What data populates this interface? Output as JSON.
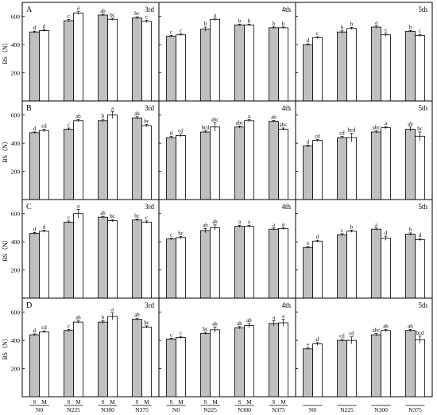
{
  "figure": {
    "ylabel": "BS（N）",
    "group_labels": [
      "N0",
      "N225",
      "N300",
      "N375"
    ],
    "bar_labels": [
      "S",
      "M"
    ],
    "yticks": [
      200,
      400,
      600
    ],
    "col_titles": [
      "3rd",
      "4th",
      "5th"
    ],
    "row_letters": [
      "A",
      "B",
      "C",
      "D"
    ],
    "colors": {
      "S": "#c0c0c0",
      "M": "#ffffff",
      "stroke": "#000000"
    }
  },
  "chart_data": [
    {
      "type": "bar",
      "row": "A",
      "title": "3rd",
      "categories": [
        "N0",
        "N225",
        "N300",
        "N375"
      ],
      "ylabel": "BS（N）",
      "ylim": [
        0,
        700
      ],
      "series": [
        {
          "name": "S",
          "values": [
            490,
            570,
            610,
            590
          ],
          "errors": [
            6,
            8,
            6,
            8
          ],
          "letters": [
            "d",
            "c",
            "ab",
            "bc"
          ]
        },
        {
          "name": "M",
          "values": [
            500,
            625,
            580,
            565
          ],
          "errors": [
            6,
            12,
            8,
            8
          ],
          "letters": [
            "d",
            "a",
            "bc",
            "c"
          ]
        }
      ]
    },
    {
      "type": "bar",
      "row": "A",
      "title": "4th",
      "categories": [
        "N0",
        "N225",
        "N300",
        "N375"
      ],
      "ylabel": "BS（N）",
      "ylim": [
        0,
        700
      ],
      "series": [
        {
          "name": "S",
          "values": [
            460,
            510,
            540,
            520
          ],
          "errors": [
            6,
            15,
            6,
            6
          ],
          "letters": [
            "c",
            "b",
            "b",
            "b"
          ]
        },
        {
          "name": "M",
          "values": [
            470,
            580,
            540,
            520
          ],
          "errors": [
            6,
            8,
            6,
            6
          ],
          "letters": [
            "c",
            "a",
            "b",
            "b"
          ]
        }
      ]
    },
    {
      "type": "bar",
      "row": "A",
      "title": "5th",
      "categories": [
        "N0",
        "N225",
        "N300",
        "N375"
      ],
      "ylabel": "BS（N）",
      "ylim": [
        0,
        700
      ],
      "series": [
        {
          "name": "S",
          "values": [
            400,
            490,
            525,
            495
          ],
          "errors": [
            6,
            8,
            8,
            6
          ],
          "letters": [
            "d",
            "b",
            "a",
            "b"
          ]
        },
        {
          "name": "M",
          "values": [
            450,
            515,
            470,
            465
          ],
          "errors": [
            6,
            8,
            12,
            8
          ],
          "letters": [
            "c",
            "b",
            "c",
            "c"
          ]
        }
      ]
    },
    {
      "type": "bar",
      "row": "B",
      "title": "3rd",
      "categories": [
        "N0",
        "N225",
        "N300",
        "N375"
      ],
      "ylabel": "BS（N）",
      "ylim": [
        0,
        700
      ],
      "series": [
        {
          "name": "S",
          "values": [
            475,
            500,
            560,
            580
          ],
          "errors": [
            6,
            8,
            10,
            8
          ],
          "letters": [
            "d",
            "c",
            "b",
            "ab"
          ]
        },
        {
          "name": "M",
          "values": [
            490,
            560,
            600,
            525
          ],
          "errors": [
            10,
            8,
            25,
            8
          ],
          "letters": [
            "cd",
            "ab",
            "a",
            "bc"
          ]
        }
      ]
    },
    {
      "type": "bar",
      "row": "B",
      "title": "4th",
      "categories": [
        "N0",
        "N225",
        "N300",
        "N375"
      ],
      "ylabel": "BS（N）",
      "ylim": [
        0,
        700
      ],
      "series": [
        {
          "name": "S",
          "values": [
            440,
            480,
            515,
            555
          ],
          "errors": [
            8,
            8,
            8,
            6
          ],
          "letters": [
            "d",
            "bcd",
            "abc",
            "ab"
          ]
        },
        {
          "name": "M",
          "values": [
            455,
            515,
            560,
            500
          ],
          "errors": [
            10,
            30,
            8,
            8
          ],
          "letters": [
            "cd",
            "abc",
            "a",
            "abc"
          ]
        }
      ]
    },
    {
      "type": "bar",
      "row": "B",
      "title": "5th",
      "categories": [
        "N0",
        "N225",
        "N300",
        "N375"
      ],
      "ylabel": "BS（N）",
      "ylim": [
        0,
        700
      ],
      "series": [
        {
          "name": "S",
          "values": [
            380,
            440,
            480,
            500
          ],
          "errors": [
            6,
            8,
            8,
            15
          ],
          "letters": [
            "d",
            "cd",
            "abc",
            "ab"
          ]
        },
        {
          "name": "M",
          "values": [
            420,
            440,
            510,
            450
          ],
          "errors": [
            6,
            30,
            8,
            30
          ],
          "letters": [
            "cd",
            "bcd",
            "a",
            "bc"
          ]
        }
      ]
    },
    {
      "type": "bar",
      "row": "C",
      "title": "3rd",
      "categories": [
        "N0",
        "N225",
        "N300",
        "N375"
      ],
      "ylabel": "BS（N）",
      "ylim": [
        0,
        700
      ],
      "series": [
        {
          "name": "S",
          "values": [
            460,
            540,
            575,
            555
          ],
          "errors": [
            6,
            8,
            6,
            8
          ],
          "letters": [
            "d",
            "c",
            "ab",
            "bc"
          ]
        },
        {
          "name": "M",
          "values": [
            475,
            600,
            550,
            540
          ],
          "errors": [
            8,
            30,
            8,
            8
          ],
          "letters": [
            "d",
            "a",
            "bc",
            "c"
          ]
        }
      ]
    },
    {
      "type": "bar",
      "row": "C",
      "title": "4th",
      "categories": [
        "N0",
        "N225",
        "N300",
        "N375"
      ],
      "ylabel": "BS（N）",
      "ylim": [
        0,
        700
      ],
      "series": [
        {
          "name": "S",
          "values": [
            420,
            480,
            510,
            490
          ],
          "errors": [
            6,
            15,
            8,
            8
          ],
          "letters": [
            "c",
            "ab",
            "a",
            "a"
          ]
        },
        {
          "name": "M",
          "values": [
            430,
            500,
            510,
            495
          ],
          "errors": [
            8,
            20,
            8,
            8
          ],
          "letters": [
            "bc",
            "ab",
            "a",
            "a"
          ]
        }
      ]
    },
    {
      "type": "bar",
      "row": "C",
      "title": "5th",
      "categories": [
        "N0",
        "N225",
        "N300",
        "N375"
      ],
      "ylabel": "BS（N）",
      "ylim": [
        0,
        700
      ],
      "series": [
        {
          "name": "S",
          "values": [
            360,
            450,
            490,
            455
          ],
          "errors": [
            6,
            8,
            8,
            8
          ],
          "letters": [
            "e",
            "c",
            "a",
            "b"
          ]
        },
        {
          "name": "M",
          "values": [
            405,
            475,
            425,
            415
          ],
          "errors": [
            6,
            8,
            15,
            8
          ],
          "letters": [
            "d",
            "b",
            "d",
            "d"
          ]
        }
      ]
    },
    {
      "type": "bar",
      "row": "D",
      "title": "3rd",
      "categories": [
        "N0",
        "N225",
        "N300",
        "N375"
      ],
      "ylabel": "BS（N）",
      "ylim": [
        0,
        700
      ],
      "series": [
        {
          "name": "S",
          "values": [
            440,
            470,
            530,
            550
          ],
          "errors": [
            6,
            8,
            10,
            8
          ],
          "letters": [
            "d",
            "c",
            "b",
            "ab"
          ]
        },
        {
          "name": "M",
          "values": [
            460,
            530,
            570,
            495
          ],
          "errors": [
            8,
            8,
            25,
            8
          ],
          "letters": [
            "cd",
            "ab",
            "a",
            "bc"
          ]
        }
      ]
    },
    {
      "type": "bar",
      "row": "D",
      "title": "4th",
      "categories": [
        "N0",
        "N225",
        "N300",
        "N375"
      ],
      "ylabel": "BS（N）",
      "ylim": [
        0,
        700
      ],
      "series": [
        {
          "name": "S",
          "values": [
            410,
            450,
            490,
            520
          ],
          "errors": [
            6,
            8,
            8,
            20
          ],
          "letters": [
            "c",
            "bc",
            "ab",
            "a"
          ]
        },
        {
          "name": "M",
          "values": [
            420,
            475,
            505,
            525
          ],
          "errors": [
            8,
            20,
            15,
            25
          ],
          "letters": [
            "c",
            "ab",
            "ab",
            "a"
          ]
        }
      ]
    },
    {
      "type": "bar",
      "row": "D",
      "title": "5th",
      "categories": [
        "N0",
        "N225",
        "N300",
        "N375"
      ],
      "ylabel": "BS（N）",
      "ylim": [
        0,
        700
      ],
      "series": [
        {
          "name": "S",
          "values": [
            340,
            400,
            440,
            470
          ],
          "errors": [
            6,
            8,
            8,
            8
          ],
          "letters": [
            "e",
            "cd",
            "abc",
            "ab"
          ]
        },
        {
          "name": "M",
          "values": [
            375,
            400,
            470,
            405
          ],
          "errors": [
            10,
            25,
            8,
            25
          ],
          "letters": [
            "d",
            "cd",
            "ab",
            "bcd"
          ]
        }
      ]
    }
  ]
}
